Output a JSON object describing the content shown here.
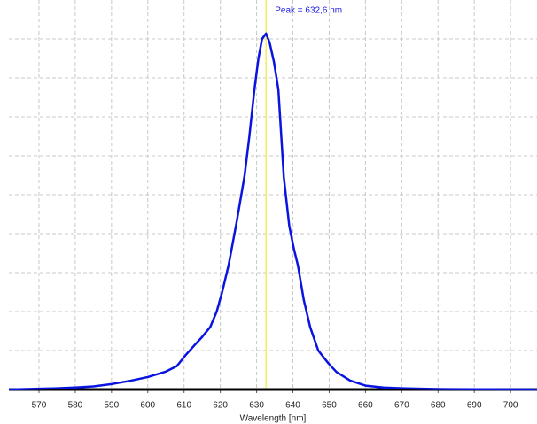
{
  "chart_data": {
    "type": "line",
    "annotation": "Peak = 632,6 nm",
    "peak": 632.6,
    "xlabel": "Wavelength [nm]",
    "x": [
      561.7,
      570,
      575,
      580,
      585,
      590,
      595,
      600,
      605,
      608,
      610.6,
      613,
      615,
      617.2,
      619,
      620.5,
      622.3,
      624.5,
      626.7,
      628,
      629.4,
      630.5,
      631.5,
      632.6,
      633.6,
      634.8,
      636,
      637.5,
      639,
      640.3,
      641.4,
      643,
      644.8,
      647,
      649.7,
      652,
      655.8,
      660,
      665,
      670,
      680,
      707.3
    ],
    "series": [
      {
        "color": "#0a14e0",
        "values": [
          0,
          0.002,
          0.003,
          0.005,
          0.008,
          0.014,
          0.022,
          0.032,
          0.046,
          0.06,
          0.09,
          0.115,
          0.135,
          0.16,
          0.2,
          0.25,
          0.32,
          0.43,
          0.55,
          0.65,
          0.77,
          0.85,
          0.9,
          0.914,
          0.89,
          0.84,
          0.77,
          0.545,
          0.42,
          0.36,
          0.318,
          0.23,
          0.159,
          0.1,
          0.068,
          0.045,
          0.023,
          0.01,
          0.005,
          0.003,
          0.001,
          0
        ]
      }
    ],
    "xlim": [
      561.7,
      707.3
    ],
    "xticks": [
      570,
      580,
      590,
      600,
      610,
      620,
      630,
      640,
      650,
      660,
      670,
      680,
      690,
      700
    ],
    "ylim": [
      0,
      1
    ],
    "ygrid": [
      0.1,
      0.2,
      0.3,
      0.4,
      0.5,
      0.6,
      0.7,
      0.8,
      0.9
    ],
    "grid": true
  }
}
